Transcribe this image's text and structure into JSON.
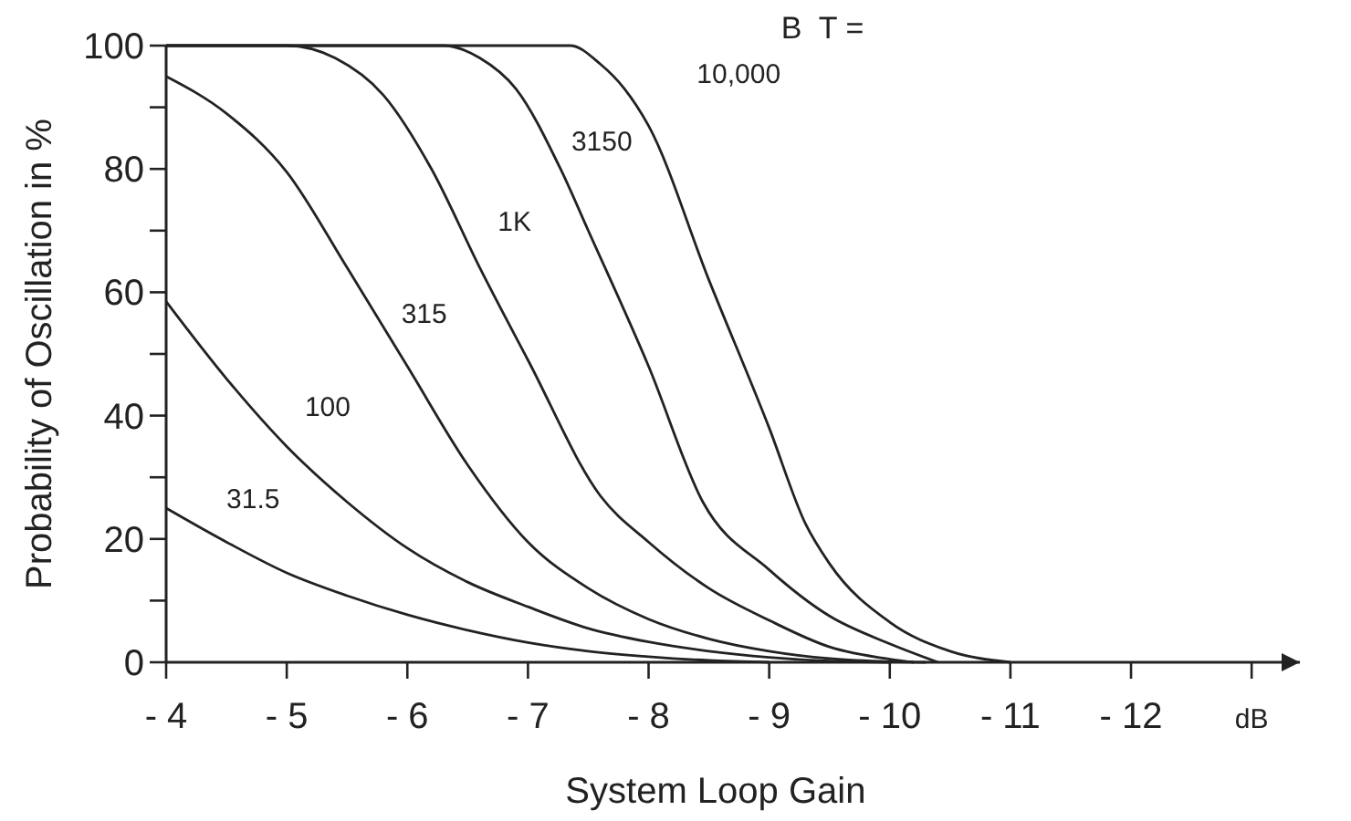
{
  "chart_data": {
    "type": "line",
    "xlabel": "System Loop Gain",
    "ylabel": "Probability of Oscillation in %",
    "legend_title": "B  T =",
    "xlim": [
      -4,
      -13.4
    ],
    "ylim": [
      0,
      100
    ],
    "xticks": [
      {
        "value": -4,
        "label": "- 4"
      },
      {
        "value": -5,
        "label": "- 5"
      },
      {
        "value": -6,
        "label": "- 6"
      },
      {
        "value": -7,
        "label": "- 7"
      },
      {
        "value": -8,
        "label": "- 8"
      },
      {
        "value": -9,
        "label": "- 9"
      },
      {
        "value": -10,
        "label": "- 10"
      },
      {
        "value": -11,
        "label": "- 11"
      },
      {
        "value": -12,
        "label": "- 12"
      },
      {
        "value": -13,
        "label": "dB"
      }
    ],
    "yticks": [
      0,
      {
        "value": 10,
        "label": null
      },
      20,
      {
        "value": 30,
        "label": null
      },
      40,
      {
        "value": 50,
        "label": null
      },
      60,
      {
        "value": 70,
        "label": null
      },
      80,
      {
        "value": 90,
        "label": null
      },
      100
    ],
    "grid": false,
    "marker": "none",
    "line_style": "solid",
    "series": [
      {
        "name": "31.5",
        "color": "#222222",
        "x": [
          -4,
          -4.5,
          -5,
          -5.5,
          -6,
          -6.5,
          -7,
          -7.5,
          -8,
          -8.5,
          -9
        ],
        "values": [
          25,
          19.5,
          14.5,
          10.8,
          7.7,
          5.2,
          3.2,
          1.8,
          0.9,
          0.3,
          0
        ]
      },
      {
        "name": "100",
        "color": "#222222",
        "x": [
          -4,
          -4.5,
          -5,
          -5.5,
          -6,
          -6.5,
          -7,
          -7.5,
          -8,
          -8.5,
          -9,
          -9.5,
          -10
        ],
        "values": [
          58.5,
          46,
          35,
          26,
          18.5,
          13,
          9,
          5.5,
          3.3,
          1.8,
          0.8,
          0.2,
          0
        ]
      },
      {
        "name": "315",
        "color": "#222222",
        "x": [
          -4,
          -4.5,
          -5,
          -5.5,
          -6,
          -6.5,
          -7,
          -7.5,
          -8,
          -8.5,
          -9,
          -9.5,
          -10,
          -10.3
        ],
        "values": [
          95,
          89,
          79.5,
          64,
          48,
          32,
          19.5,
          12,
          7,
          3.8,
          1.8,
          0.6,
          0.1,
          0
        ]
      },
      {
        "name": "1K",
        "color": "#222222",
        "x": [
          -4,
          -5,
          -5.4,
          -5.8,
          -6.2,
          -6.6,
          -7,
          -7.6,
          -8,
          -8.5,
          -9,
          -9.5,
          -10,
          -10.2
        ],
        "values": [
          100,
          100,
          98,
          92,
          80,
          64,
          49,
          27,
          19.5,
          12,
          6.8,
          2.5,
          0.5,
          0
        ]
      },
      {
        "name": "3150",
        "color": "#222222",
        "x": [
          -4,
          -6.3,
          -6.6,
          -6.9,
          -7.27,
          -7.5,
          -8,
          -8.45,
          -9,
          -9.5,
          -10,
          -10.4
        ],
        "values": [
          100,
          100,
          98,
          93,
          80,
          70,
          48,
          26,
          15,
          7.5,
          3,
          0
        ]
      },
      {
        "name": "10,000",
        "color": "#222222",
        "x": [
          -4,
          -7.35,
          -7.6,
          -7.8,
          -8,
          -8.5,
          -9,
          -9.3,
          -9.5,
          -10,
          -10.5,
          -11
        ],
        "values": [
          100,
          100,
          97,
          93,
          87,
          62,
          38,
          22.5,
          16,
          6.5,
          1.8,
          0
        ]
      }
    ]
  }
}
